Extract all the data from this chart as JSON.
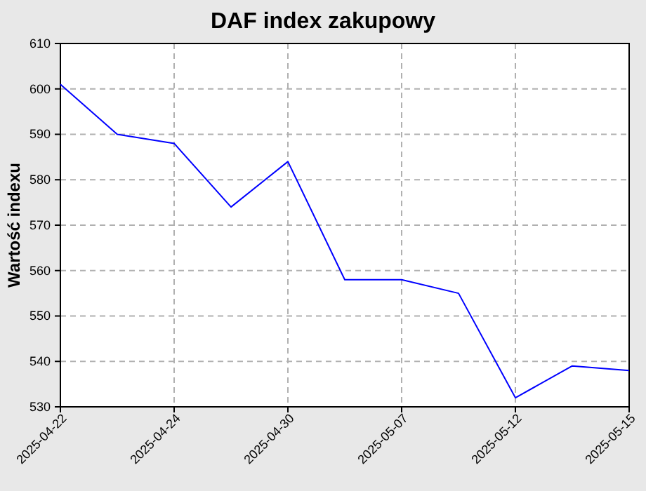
{
  "chart_data": {
    "type": "line",
    "title": "DAF index zakupowy",
    "ylabel": "Wartość indexu",
    "categories": [
      "2025-04-22",
      null,
      "2025-04-24",
      null,
      "2025-04-30",
      null,
      "2025-05-07",
      null,
      "2025-05-12",
      null,
      "2025-05-15"
    ],
    "series": [
      {
        "color": "#0000ff",
        "values": [
          601,
          590,
          588,
          574,
          584,
          558,
          558,
          555,
          532,
          539,
          538
        ]
      }
    ],
    "ylim": [
      530,
      610
    ],
    "yticks": [
      530,
      540,
      550,
      560,
      570,
      580,
      590,
      600,
      610
    ],
    "grid": true,
    "line_style": "solid",
    "marker": "none"
  }
}
